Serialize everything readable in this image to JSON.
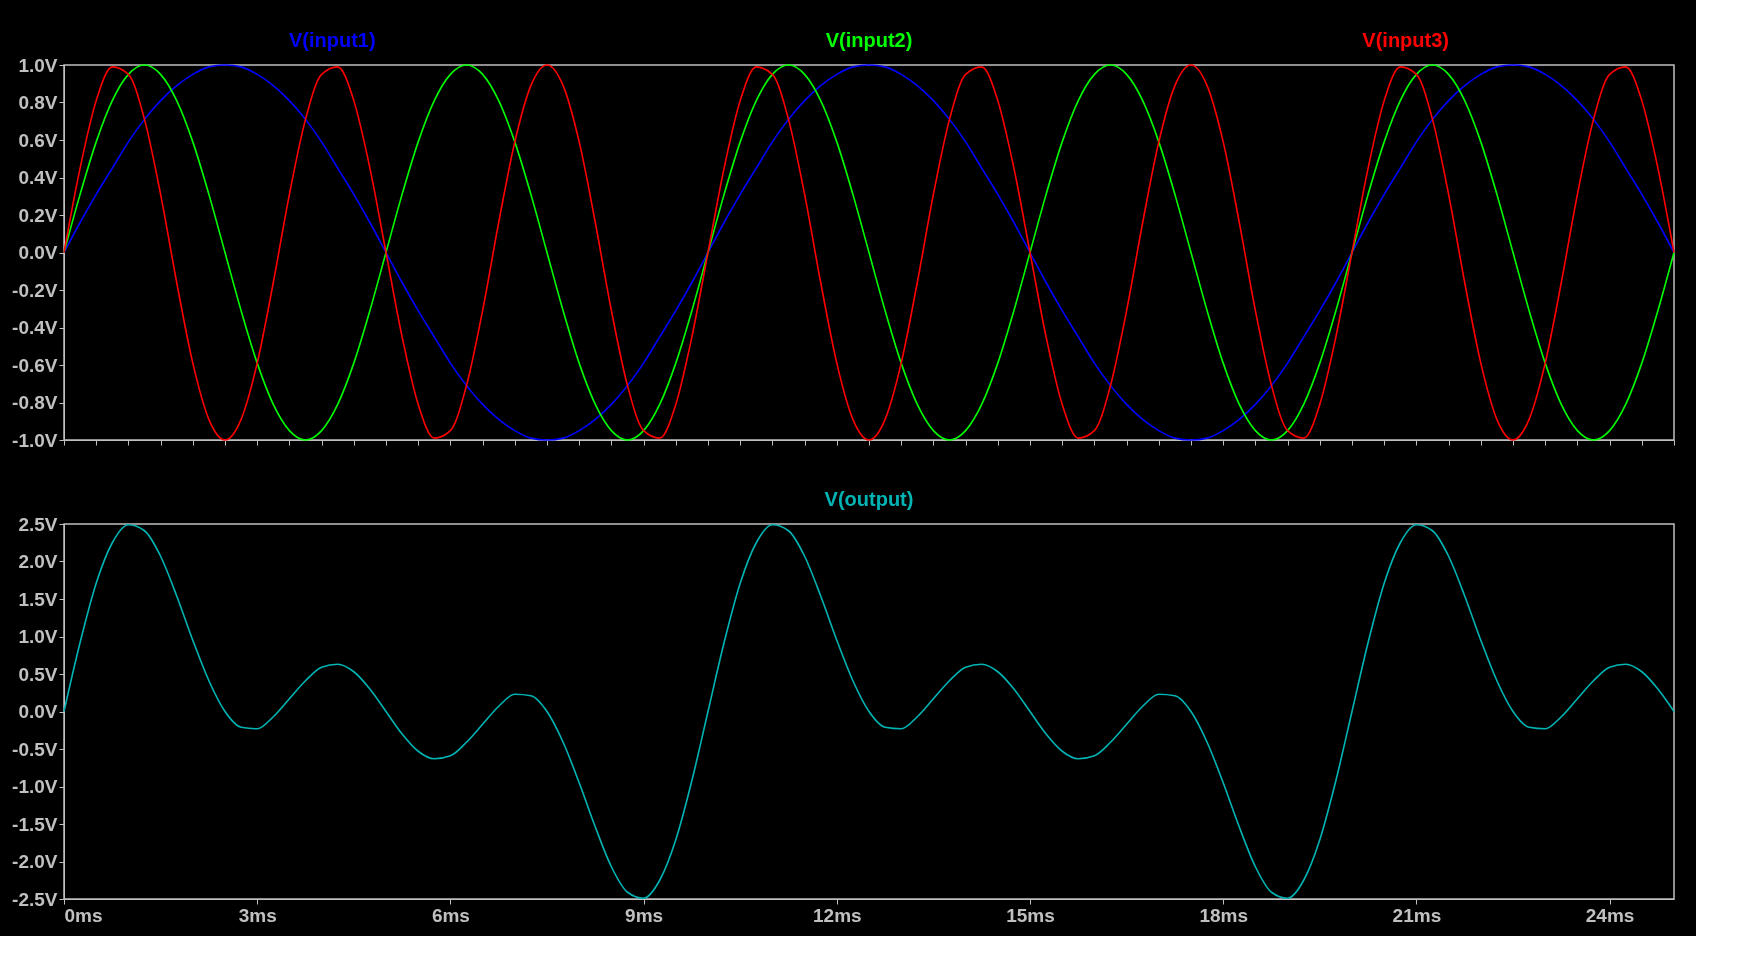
{
  "chart_data": [
    {
      "type": "line",
      "legend": "top",
      "grid": false,
      "tick_labels": "y",
      "line_style": "solid",
      "x": [
        0,
        0.25,
        0.5,
        0.75,
        1,
        1.25,
        1.5,
        1.75,
        2,
        2.25,
        2.5,
        2.75,
        3,
        3.25,
        3.5,
        3.75,
        4,
        4.25,
        4.5,
        4.75,
        5,
        5.25,
        5.5,
        5.75,
        6,
        6.25,
        6.5,
        6.75,
        7,
        7.25,
        7.5,
        7.75,
        8,
        8.25,
        8.5,
        8.75,
        9,
        9.25,
        9.5,
        9.75,
        10,
        10.25,
        10.5,
        10.75,
        11,
        11.25,
        11.5,
        11.75,
        12,
        12.25,
        12.5,
        12.75,
        13,
        13.25,
        13.5,
        13.75,
        14,
        14.25,
        14.5,
        14.75,
        15,
        15.25,
        15.5,
        15.75,
        16,
        16.25,
        16.5,
        16.75,
        17,
        17.25,
        17.5,
        17.75,
        18,
        18.25,
        18.5,
        18.75,
        19,
        19.25,
        19.5,
        19.75,
        20,
        20.25,
        20.5,
        20.75,
        21,
        21.25,
        21.5,
        21.75,
        22,
        22.25,
        22.5,
        22.75,
        23,
        23.25,
        23.5,
        23.75,
        24,
        24.25,
        24.5,
        24.75,
        25
      ],
      "xlim": [
        0,
        25
      ],
      "ylim": [
        -1,
        1
      ],
      "yticks": [
        {
          "value": 1,
          "label": "1.0V"
        },
        {
          "value": 0.8,
          "label": "0.8V"
        },
        {
          "value": 0.6,
          "label": "0.6V"
        },
        {
          "value": 0.4,
          "label": "0.4V"
        },
        {
          "value": 0.2,
          "label": "0.2V"
        },
        {
          "value": 0,
          "label": "0.0V"
        },
        {
          "value": -0.2,
          "label": "-0.2V"
        },
        {
          "value": -0.4,
          "label": "-0.4V"
        },
        {
          "value": -0.6,
          "label": "-0.6V"
        },
        {
          "value": -0.8,
          "label": "-0.8V"
        },
        {
          "value": -1,
          "label": "-1.0V"
        }
      ],
      "series": [
        {
          "name": "V(input1)",
          "color": "#0000ff",
          "values": [
            0,
            0.16,
            0.31,
            0.45,
            0.59,
            0.71,
            0.81,
            0.89,
            0.95,
            0.99,
            1,
            0.99,
            0.95,
            0.89,
            0.81,
            0.71,
            0.59,
            0.45,
            0.31,
            0.16,
            0,
            -0.16,
            -0.31,
            -0.45,
            -0.59,
            -0.71,
            -0.81,
            -0.89,
            -0.95,
            -0.99,
            -1,
            -0.99,
            -0.95,
            -0.89,
            -0.81,
            -0.71,
            -0.59,
            -0.45,
            -0.31,
            -0.16,
            0,
            0.16,
            0.31,
            0.45,
            0.59,
            0.71,
            0.81,
            0.89,
            0.95,
            0.99,
            1,
            0.99,
            0.95,
            0.89,
            0.81,
            0.71,
            0.59,
            0.45,
            0.31,
            0.16,
            0,
            -0.16,
            -0.31,
            -0.45,
            -0.59,
            -0.71,
            -0.81,
            -0.89,
            -0.95,
            -0.99,
            -1,
            -0.99,
            -0.95,
            -0.89,
            -0.81,
            -0.71,
            -0.59,
            -0.45,
            -0.31,
            -0.16,
            0,
            0.16,
            0.31,
            0.45,
            0.59,
            0.71,
            0.81,
            0.89,
            0.95,
            0.99,
            1,
            0.99,
            0.95,
            0.89,
            0.81,
            0.71,
            0.59,
            0.45,
            0.31,
            0.16,
            0
          ]
        },
        {
          "name": "V(input2)",
          "color": "#00ff00",
          "values": [
            0,
            0.31,
            0.59,
            0.81,
            0.95,
            1,
            0.95,
            0.81,
            0.59,
            0.31,
            0,
            -0.31,
            -0.59,
            -0.81,
            -0.95,
            -1,
            -0.95,
            -0.81,
            -0.59,
            -0.31,
            0,
            0.31,
            0.59,
            0.81,
            0.95,
            1,
            0.95,
            0.81,
            0.59,
            0.31,
            0,
            -0.31,
            -0.59,
            -0.81,
            -0.95,
            -1,
            -0.95,
            -0.81,
            -0.59,
            -0.31,
            0,
            0.31,
            0.59,
            0.81,
            0.95,
            1,
            0.95,
            0.81,
            0.59,
            0.31,
            0,
            -0.31,
            -0.59,
            -0.81,
            -0.95,
            -1,
            -0.95,
            -0.81,
            -0.59,
            -0.31,
            0,
            0.31,
            0.59,
            0.81,
            0.95,
            1,
            0.95,
            0.81,
            0.59,
            0.31,
            0,
            -0.31,
            -0.59,
            -0.81,
            -0.95,
            -1,
            -0.95,
            -0.81,
            -0.59,
            -0.31,
            0,
            0.31,
            0.59,
            0.81,
            0.95,
            1,
            0.95,
            0.81,
            0.59,
            0.31,
            0,
            -0.31,
            -0.59,
            -0.81,
            -0.95,
            -1,
            -0.95,
            -0.81,
            -0.59,
            -0.31,
            0
          ]
        },
        {
          "name": "V(input3)",
          "color": "#ff0000",
          "values": [
            0,
            0.45,
            0.81,
            0.99,
            0.95,
            0.71,
            0.31,
            -0.16,
            -0.59,
            -0.89,
            -1,
            -0.89,
            -0.59,
            -0.16,
            0.31,
            0.71,
            0.95,
            0.99,
            0.81,
            0.45,
            0,
            -0.45,
            -0.81,
            -0.99,
            -0.95,
            -0.71,
            -0.31,
            0.16,
            0.59,
            0.89,
            1,
            0.89,
            0.59,
            0.16,
            -0.31,
            -0.71,
            -0.95,
            -0.99,
            -0.81,
            -0.45,
            0,
            0.45,
            0.81,
            0.99,
            0.95,
            0.71,
            0.31,
            -0.16,
            -0.59,
            -0.89,
            -1,
            -0.89,
            -0.59,
            -0.16,
            0.31,
            0.71,
            0.95,
            0.99,
            0.81,
            0.45,
            0,
            -0.45,
            -0.81,
            -0.99,
            -0.95,
            -0.71,
            -0.31,
            0.16,
            0.59,
            0.89,
            1,
            0.89,
            0.59,
            0.16,
            -0.31,
            -0.71,
            -0.95,
            -0.99,
            -0.81,
            -0.45,
            0,
            0.45,
            0.81,
            0.99,
            0.95,
            0.71,
            0.31,
            -0.16,
            -0.59,
            -0.89,
            -1,
            -0.89,
            -0.59,
            -0.16,
            0.31,
            0.71,
            0.95,
            0.99,
            0.81,
            0.45,
            0
          ]
        }
      ]
    },
    {
      "type": "line",
      "legend": "top",
      "grid": false,
      "line_style": "solid",
      "x": [
        0,
        0.25,
        0.5,
        0.75,
        1,
        1.25,
        1.5,
        1.75,
        2,
        2.25,
        2.5,
        2.75,
        3,
        3.25,
        3.5,
        3.75,
        4,
        4.25,
        4.5,
        4.75,
        5,
        5.25,
        5.5,
        5.75,
        6,
        6.25,
        6.5,
        6.75,
        7,
        7.25,
        7.5,
        7.75,
        8,
        8.25,
        8.5,
        8.75,
        9,
        9.25,
        9.5,
        9.75,
        10,
        10.25,
        10.5,
        10.75,
        11,
        11.25,
        11.5,
        11.75,
        12,
        12.25,
        12.5,
        12.75,
        13,
        13.25,
        13.5,
        13.75,
        14,
        14.25,
        14.5,
        14.75,
        15,
        15.25,
        15.5,
        15.75,
        16,
        16.25,
        16.5,
        16.75,
        17,
        17.25,
        17.5,
        17.75,
        18,
        18.25,
        18.5,
        18.75,
        19,
        19.25,
        19.5,
        19.75,
        20,
        20.25,
        20.5,
        20.75,
        21,
        21.25,
        21.5,
        21.75,
        22,
        22.25,
        22.5,
        22.75,
        23,
        23.25,
        23.5,
        23.75,
        24,
        24.25,
        24.5,
        24.75,
        25
      ],
      "xlim": [
        0,
        25
      ],
      "xticks": [
        {
          "value": 0,
          "label": "0ms"
        },
        {
          "value": 3,
          "label": "3ms"
        },
        {
          "value": 6,
          "label": "6ms"
        },
        {
          "value": 9,
          "label": "9ms"
        },
        {
          "value": 12,
          "label": "12ms"
        },
        {
          "value": 15,
          "label": "15ms"
        },
        {
          "value": 18,
          "label": "18ms"
        },
        {
          "value": 21,
          "label": "21ms"
        },
        {
          "value": 24,
          "label": "24ms"
        }
      ],
      "ylim": [
        -2.5,
        2.5
      ],
      "yticks": [
        {
          "value": 2.5,
          "label": "2.5V"
        },
        {
          "value": 2,
          "label": "2.0V"
        },
        {
          "value": 1.5,
          "label": "1.5V"
        },
        {
          "value": 1,
          "label": "1.0V"
        },
        {
          "value": 0.5,
          "label": "0.5V"
        },
        {
          "value": 0,
          "label": "0.0V"
        },
        {
          "value": -0.5,
          "label": "-0.5V"
        },
        {
          "value": -1,
          "label": "-1.0V"
        },
        {
          "value": -1.5,
          "label": "-1.5V"
        },
        {
          "value": -2,
          "label": "-2.0V"
        },
        {
          "value": -2.5,
          "label": "-2.5V"
        }
      ],
      "series": [
        {
          "name": "V(output)",
          "color": "#00b4b4",
          "values": [
            0,
            0.92,
            1.71,
            2.25,
            2.49,
            2.41,
            2.07,
            1.54,
            0.95,
            0.41,
            0,
            -0.21,
            -0.23,
            -0.07,
            0.17,
            0.41,
            0.59,
            0.63,
            0.53,
            0.3,
            0,
            -0.3,
            -0.53,
            -0.63,
            -0.59,
            -0.41,
            -0.17,
            0.07,
            0.23,
            0.21,
            0,
            -0.41,
            -0.95,
            -1.54,
            -2.07,
            -2.41,
            -2.49,
            -2.25,
            -1.71,
            -0.92,
            0,
            0.92,
            1.71,
            2.25,
            2.49,
            2.41,
            2.07,
            1.54,
            0.95,
            0.41,
            0,
            -0.21,
            -0.23,
            -0.07,
            0.17,
            0.41,
            0.59,
            0.63,
            0.53,
            0.3,
            0,
            -0.3,
            -0.53,
            -0.63,
            -0.59,
            -0.41,
            -0.17,
            0.07,
            0.23,
            0.21,
            0,
            -0.41,
            -0.95,
            -1.54,
            -2.07,
            -2.41,
            -2.49,
            -2.25,
            -1.71,
            -0.92,
            0,
            0.92,
            1.71,
            2.25,
            2.49,
            2.41,
            2.07,
            1.54,
            0.95,
            0.41,
            0,
            -0.21,
            -0.23,
            -0.07,
            0.17,
            0.41,
            0.59,
            0.63,
            0.53,
            0.3,
            0
          ]
        }
      ]
    }
  ]
}
